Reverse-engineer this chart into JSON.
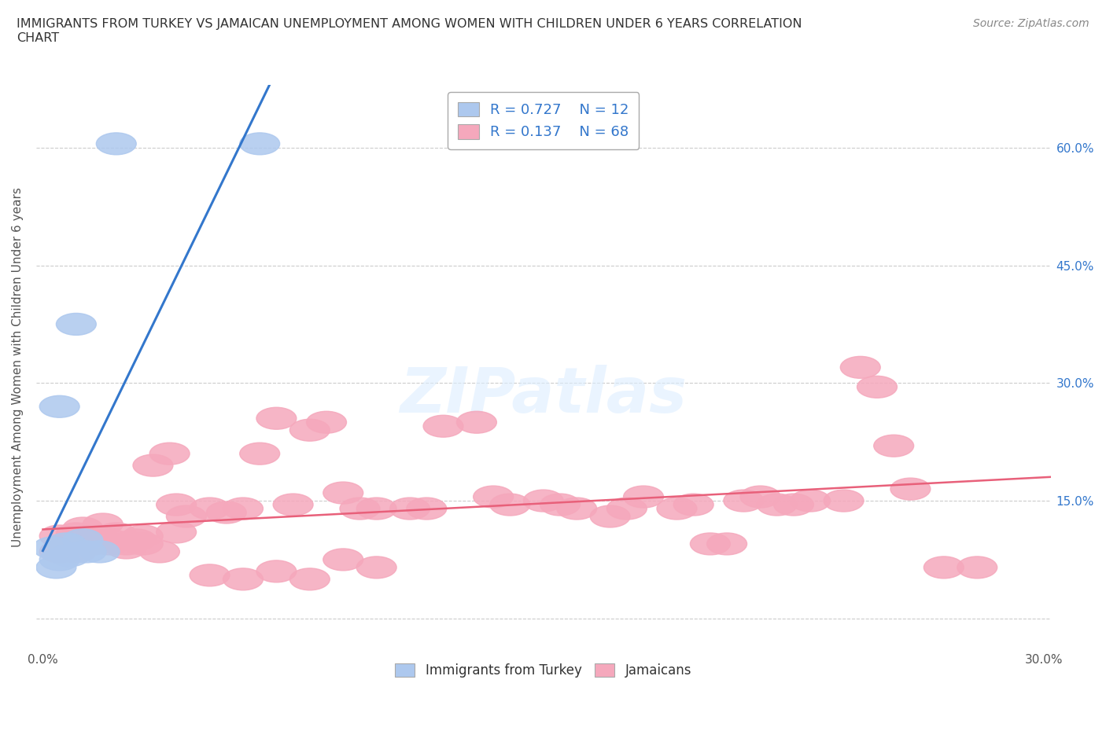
{
  "title": "IMMIGRANTS FROM TURKEY VS JAMAICAN UNEMPLOYMENT AMONG WOMEN WITH CHILDREN UNDER 6 YEARS CORRELATION\nCHART",
  "source": "Source: ZipAtlas.com",
  "ylabel": "Unemployment Among Women with Children Under 6 years",
  "turkey_R": 0.727,
  "turkey_N": 12,
  "jamaican_R": 0.137,
  "jamaican_N": 68,
  "turkey_color": "#adc8ee",
  "jamaican_color": "#f5a8bc",
  "turkey_line_color": "#3377cc",
  "jamaican_line_color": "#e8607a",
  "background_color": "#ffffff",
  "xlim": [
    -0.002,
    0.302
  ],
  "ylim": [
    -0.04,
    0.68
  ],
  "x_ticks": [
    0.0,
    0.1,
    0.2,
    0.3
  ],
  "x_tick_labels": [
    "0.0%",
    "",
    "",
    "30.0%"
  ],
  "y_ticks": [
    0.0,
    0.15,
    0.3,
    0.45,
    0.6
  ],
  "right_y_tick_labels": [
    "",
    "15.0%",
    "30.0%",
    "45.0%",
    "60.0%"
  ],
  "turkey_scatter_x": [
    0.022,
    0.065,
    0.005,
    0.012,
    0.017,
    0.007,
    0.013,
    0.005,
    0.003,
    0.008,
    0.004,
    0.01
  ],
  "turkey_scatter_y": [
    0.605,
    0.605,
    0.27,
    0.1,
    0.085,
    0.095,
    0.085,
    0.075,
    0.09,
    0.08,
    0.065,
    0.375
  ],
  "jamaican_scatter_x": [
    0.005,
    0.008,
    0.01,
    0.012,
    0.015,
    0.018,
    0.02,
    0.022,
    0.025,
    0.028,
    0.03,
    0.033,
    0.038,
    0.04,
    0.043,
    0.05,
    0.055,
    0.06,
    0.065,
    0.07,
    0.075,
    0.08,
    0.085,
    0.09,
    0.095,
    0.1,
    0.11,
    0.115,
    0.12,
    0.13,
    0.135,
    0.14,
    0.15,
    0.155,
    0.16,
    0.17,
    0.175,
    0.18,
    0.19,
    0.195,
    0.2,
    0.205,
    0.21,
    0.215,
    0.22,
    0.225,
    0.23,
    0.24,
    0.245,
    0.25,
    0.255,
    0.26,
    0.27,
    0.28,
    0.005,
    0.01,
    0.015,
    0.02,
    0.025,
    0.03,
    0.035,
    0.04,
    0.05,
    0.06,
    0.07,
    0.08,
    0.09,
    0.1
  ],
  "jamaican_scatter_y": [
    0.105,
    0.095,
    0.108,
    0.115,
    0.1,
    0.12,
    0.095,
    0.108,
    0.095,
    0.1,
    0.105,
    0.195,
    0.21,
    0.145,
    0.13,
    0.14,
    0.135,
    0.14,
    0.21,
    0.255,
    0.145,
    0.24,
    0.25,
    0.16,
    0.14,
    0.14,
    0.14,
    0.14,
    0.245,
    0.25,
    0.155,
    0.145,
    0.15,
    0.145,
    0.14,
    0.13,
    0.14,
    0.155,
    0.14,
    0.145,
    0.095,
    0.095,
    0.15,
    0.155,
    0.145,
    0.145,
    0.15,
    0.15,
    0.32,
    0.295,
    0.22,
    0.165,
    0.065,
    0.065,
    0.085,
    0.085,
    0.095,
    0.1,
    0.09,
    0.095,
    0.085,
    0.11,
    0.055,
    0.05,
    0.06,
    0.05,
    0.075,
    0.065
  ],
  "watermark_text": "ZIPatlas",
  "bottom_legend_labels": [
    "Immigrants from Turkey",
    "Jamaicans"
  ]
}
